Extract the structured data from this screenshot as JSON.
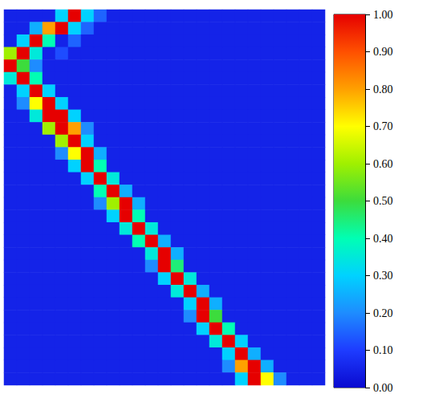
{
  "chart_data": {
    "type": "heatmap",
    "tick_labels": false,
    "cells": [
      [
        0.05,
        0.05,
        0.05,
        0.05,
        0.3,
        1,
        0.3,
        0.15,
        0.05,
        0.05,
        0.05,
        0.05,
        0.05,
        0.05,
        0.05,
        0.05,
        0.05,
        0.05,
        0.05,
        0.05,
        0.05,
        0.05,
        0.05,
        0.05,
        0.05
      ],
      [
        0.05,
        0.05,
        0.25,
        0.8,
        1,
        0.3,
        0.15,
        0.05,
        0.05,
        0.05,
        0.05,
        0.05,
        0.05,
        0.05,
        0.05,
        0.05,
        0.05,
        0.05,
        0.05,
        0.05,
        0.05,
        0.05,
        0.05,
        0.05,
        0.05
      ],
      [
        0.05,
        0.3,
        1,
        0.4,
        0.05,
        0.15,
        0.05,
        0.05,
        0.05,
        0.05,
        0.05,
        0.05,
        0.05,
        0.05,
        0.05,
        0.05,
        0.05,
        0.05,
        0.05,
        0.05,
        0.05,
        0.05,
        0.05,
        0.05,
        0.05
      ],
      [
        0.6,
        1,
        0.35,
        0.05,
        0.12,
        0.05,
        0.05,
        0.05,
        0.05,
        0.05,
        0.05,
        0.05,
        0.05,
        0.05,
        0.05,
        0.05,
        0.05,
        0.05,
        0.05,
        0.05,
        0.05,
        0.05,
        0.05,
        0.05,
        0.05
      ],
      [
        1,
        0.5,
        0.2,
        0.05,
        0.05,
        0.05,
        0.05,
        0.05,
        0.05,
        0.05,
        0.05,
        0.05,
        0.05,
        0.05,
        0.05,
        0.05,
        0.05,
        0.05,
        0.05,
        0.05,
        0.05,
        0.05,
        0.05,
        0.05,
        0.05
      ],
      [
        0.35,
        1,
        0.4,
        0.05,
        0.05,
        0.05,
        0.05,
        0.05,
        0.05,
        0.05,
        0.05,
        0.05,
        0.05,
        0.05,
        0.05,
        0.05,
        0.05,
        0.05,
        0.05,
        0.05,
        0.05,
        0.05,
        0.05,
        0.05,
        0.05
      ],
      [
        0.05,
        0.3,
        1,
        0.3,
        0.05,
        0.05,
        0.05,
        0.05,
        0.05,
        0.05,
        0.05,
        0.05,
        0.05,
        0.05,
        0.05,
        0.05,
        0.05,
        0.05,
        0.05,
        0.05,
        0.05,
        0.05,
        0.05,
        0.05,
        0.05
      ],
      [
        0.05,
        0.2,
        0.7,
        1,
        0.3,
        0.05,
        0.05,
        0.05,
        0.05,
        0.05,
        0.05,
        0.05,
        0.05,
        0.05,
        0.05,
        0.05,
        0.05,
        0.05,
        0.05,
        0.05,
        0.05,
        0.05,
        0.05,
        0.05,
        0.05
      ],
      [
        0.05,
        0.05,
        0.35,
        1,
        1,
        0.3,
        0.05,
        0.05,
        0.05,
        0.05,
        0.05,
        0.05,
        0.05,
        0.05,
        0.05,
        0.05,
        0.05,
        0.05,
        0.05,
        0.05,
        0.05,
        0.05,
        0.05,
        0.05,
        0.05
      ],
      [
        0.05,
        0.05,
        0.05,
        0.6,
        1,
        0.8,
        0.2,
        0.05,
        0.05,
        0.05,
        0.05,
        0.05,
        0.05,
        0.05,
        0.05,
        0.05,
        0.05,
        0.05,
        0.05,
        0.05,
        0.05,
        0.05,
        0.05,
        0.05,
        0.05
      ],
      [
        0.05,
        0.05,
        0.05,
        0.05,
        0.6,
        1,
        0.3,
        0.05,
        0.05,
        0.05,
        0.05,
        0.05,
        0.05,
        0.05,
        0.05,
        0.05,
        0.05,
        0.05,
        0.05,
        0.05,
        0.05,
        0.05,
        0.05,
        0.05,
        0.05
      ],
      [
        0.05,
        0.05,
        0.05,
        0.05,
        0.2,
        0.7,
        1,
        0.25,
        0.05,
        0.05,
        0.05,
        0.05,
        0.05,
        0.05,
        0.05,
        0.05,
        0.05,
        0.05,
        0.05,
        0.05,
        0.05,
        0.05,
        0.05,
        0.05,
        0.05
      ],
      [
        0.05,
        0.05,
        0.05,
        0.05,
        0.05,
        0.3,
        1,
        0.4,
        0.05,
        0.05,
        0.05,
        0.05,
        0.05,
        0.05,
        0.05,
        0.05,
        0.05,
        0.05,
        0.05,
        0.05,
        0.05,
        0.05,
        0.05,
        0.05,
        0.05
      ],
      [
        0.05,
        0.05,
        0.05,
        0.05,
        0.05,
        0.05,
        0.3,
        1,
        0.35,
        0.05,
        0.05,
        0.05,
        0.05,
        0.05,
        0.05,
        0.05,
        0.05,
        0.05,
        0.05,
        0.05,
        0.05,
        0.05,
        0.05,
        0.05,
        0.05
      ],
      [
        0.05,
        0.05,
        0.05,
        0.05,
        0.05,
        0.05,
        0.05,
        0.4,
        1,
        0.25,
        0.05,
        0.05,
        0.05,
        0.05,
        0.05,
        0.05,
        0.05,
        0.05,
        0.05,
        0.05,
        0.05,
        0.05,
        0.05,
        0.05,
        0.05
      ],
      [
        0.05,
        0.05,
        0.05,
        0.05,
        0.05,
        0.05,
        0.05,
        0.2,
        0.6,
        1,
        0.25,
        0.05,
        0.05,
        0.05,
        0.05,
        0.05,
        0.05,
        0.05,
        0.05,
        0.05,
        0.05,
        0.05,
        0.05,
        0.05,
        0.05
      ],
      [
        0.05,
        0.05,
        0.05,
        0.05,
        0.05,
        0.05,
        0.05,
        0.05,
        0.3,
        1,
        0.4,
        0.05,
        0.05,
        0.05,
        0.05,
        0.05,
        0.05,
        0.05,
        0.05,
        0.05,
        0.05,
        0.05,
        0.05,
        0.05,
        0.05
      ],
      [
        0.05,
        0.05,
        0.05,
        0.05,
        0.05,
        0.05,
        0.05,
        0.05,
        0.05,
        0.35,
        1,
        0.35,
        0.05,
        0.05,
        0.05,
        0.05,
        0.05,
        0.05,
        0.05,
        0.05,
        0.05,
        0.05,
        0.05,
        0.05,
        0.05
      ],
      [
        0.05,
        0.05,
        0.05,
        0.05,
        0.05,
        0.05,
        0.05,
        0.05,
        0.05,
        0.05,
        0.4,
        1,
        0.25,
        0.05,
        0.05,
        0.05,
        0.05,
        0.05,
        0.05,
        0.05,
        0.05,
        0.05,
        0.05,
        0.05,
        0.05
      ],
      [
        0.05,
        0.05,
        0.05,
        0.05,
        0.05,
        0.05,
        0.05,
        0.05,
        0.05,
        0.05,
        0.05,
        0.35,
        1,
        0.25,
        0.05,
        0.05,
        0.05,
        0.05,
        0.05,
        0.05,
        0.05,
        0.05,
        0.05,
        0.05,
        0.05
      ],
      [
        0.05,
        0.05,
        0.05,
        0.05,
        0.05,
        0.05,
        0.05,
        0.05,
        0.05,
        0.05,
        0.05,
        0.2,
        1,
        0.45,
        0.05,
        0.05,
        0.05,
        0.05,
        0.05,
        0.05,
        0.05,
        0.05,
        0.05,
        0.05,
        0.05
      ],
      [
        0.05,
        0.05,
        0.05,
        0.05,
        0.05,
        0.05,
        0.05,
        0.05,
        0.05,
        0.05,
        0.05,
        0.05,
        0.3,
        1,
        0.35,
        0.05,
        0.05,
        0.05,
        0.05,
        0.05,
        0.05,
        0.05,
        0.05,
        0.05,
        0.05
      ],
      [
        0.05,
        0.05,
        0.05,
        0.05,
        0.05,
        0.05,
        0.05,
        0.05,
        0.05,
        0.05,
        0.05,
        0.05,
        0.05,
        0.35,
        1,
        0.25,
        0.05,
        0.05,
        0.05,
        0.05,
        0.05,
        0.05,
        0.05,
        0.05,
        0.05
      ],
      [
        0.05,
        0.05,
        0.05,
        0.05,
        0.05,
        0.05,
        0.05,
        0.05,
        0.05,
        0.05,
        0.05,
        0.05,
        0.05,
        0.05,
        0.3,
        1,
        0.25,
        0.05,
        0.05,
        0.05,
        0.05,
        0.05,
        0.05,
        0.05,
        0.05
      ],
      [
        0.05,
        0.05,
        0.05,
        0.05,
        0.05,
        0.05,
        0.05,
        0.05,
        0.05,
        0.05,
        0.05,
        0.05,
        0.05,
        0.05,
        0.2,
        1,
        0.5,
        0.05,
        0.05,
        0.05,
        0.05,
        0.05,
        0.05,
        0.05,
        0.05
      ],
      [
        0.05,
        0.05,
        0.05,
        0.05,
        0.05,
        0.05,
        0.05,
        0.05,
        0.05,
        0.05,
        0.05,
        0.05,
        0.05,
        0.05,
        0.05,
        0.3,
        1,
        0.4,
        0.05,
        0.05,
        0.05,
        0.05,
        0.05,
        0.05,
        0.05
      ],
      [
        0.05,
        0.05,
        0.05,
        0.05,
        0.05,
        0.05,
        0.05,
        0.05,
        0.05,
        0.05,
        0.05,
        0.05,
        0.05,
        0.05,
        0.05,
        0.05,
        0.35,
        1,
        0.3,
        0.05,
        0.05,
        0.05,
        0.05,
        0.05,
        0.05
      ],
      [
        0.05,
        0.05,
        0.05,
        0.05,
        0.05,
        0.05,
        0.05,
        0.05,
        0.05,
        0.05,
        0.05,
        0.05,
        0.05,
        0.05,
        0.05,
        0.05,
        0.05,
        0.3,
        1,
        0.25,
        0.05,
        0.05,
        0.05,
        0.05,
        0.05
      ],
      [
        0.05,
        0.05,
        0.05,
        0.05,
        0.05,
        0.05,
        0.05,
        0.05,
        0.05,
        0.05,
        0.05,
        0.05,
        0.05,
        0.05,
        0.05,
        0.05,
        0.05,
        0.2,
        0.8,
        1,
        0.25,
        0.05,
        0.05,
        0.05,
        0.05
      ],
      [
        0.05,
        0.05,
        0.05,
        0.05,
        0.05,
        0.05,
        0.05,
        0.05,
        0.05,
        0.05,
        0.05,
        0.05,
        0.05,
        0.05,
        0.05,
        0.05,
        0.05,
        0.05,
        0.3,
        1,
        0.7,
        0.2,
        0.05,
        0.05,
        0.05
      ]
    ],
    "colorbar": {
      "range": [
        0,
        1
      ],
      "ticks": [
        {
          "value": 0,
          "label": "0.00"
        },
        {
          "value": 0.1,
          "label": "0.10"
        },
        {
          "value": 0.2,
          "label": "0.20"
        },
        {
          "value": 0.3,
          "label": "0.30"
        },
        {
          "value": 0.4,
          "label": "0.40"
        },
        {
          "value": 0.5,
          "label": "0.50"
        },
        {
          "value": 0.6,
          "label": "0.60"
        },
        {
          "value": 0.7,
          "label": "0.70"
        },
        {
          "value": 0.8,
          "label": "0.80"
        },
        {
          "value": 0.9,
          "label": "0.90"
        },
        {
          "value": 1,
          "label": "1.00"
        }
      ]
    }
  }
}
